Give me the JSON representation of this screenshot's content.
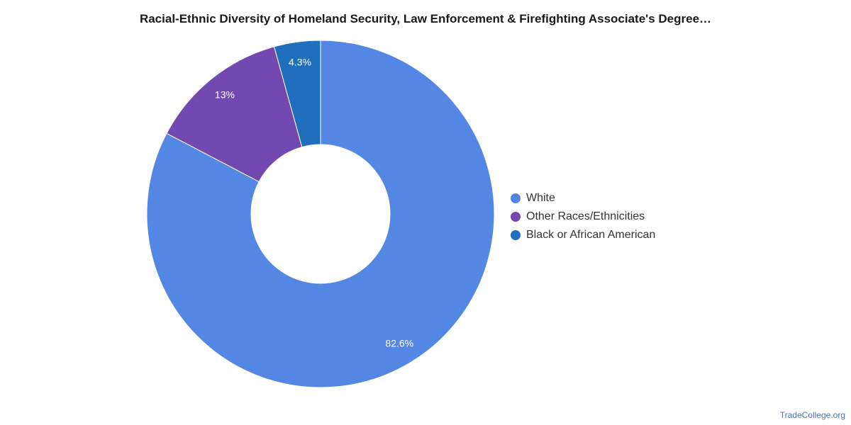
{
  "chart_data": {
    "type": "pie",
    "variant": "donut",
    "title": "Racial-Ethnic Diversity of Homeland Security, Law Enforcement & Firefighting Associate's Degree…",
    "slices": [
      {
        "label": "White",
        "value": 82.6,
        "display": "82.6%",
        "color": "#5487e3"
      },
      {
        "label": "Other Races/Ethnicities",
        "value": 13,
        "display": "13%",
        "color": "#7348b0"
      },
      {
        "label": "Black or African American",
        "value": 4.3,
        "display": "4.3%",
        "color": "#1f6fbd"
      }
    ],
    "legend_position": "right"
  },
  "footer": {
    "source": "TradeCollege.org"
  }
}
